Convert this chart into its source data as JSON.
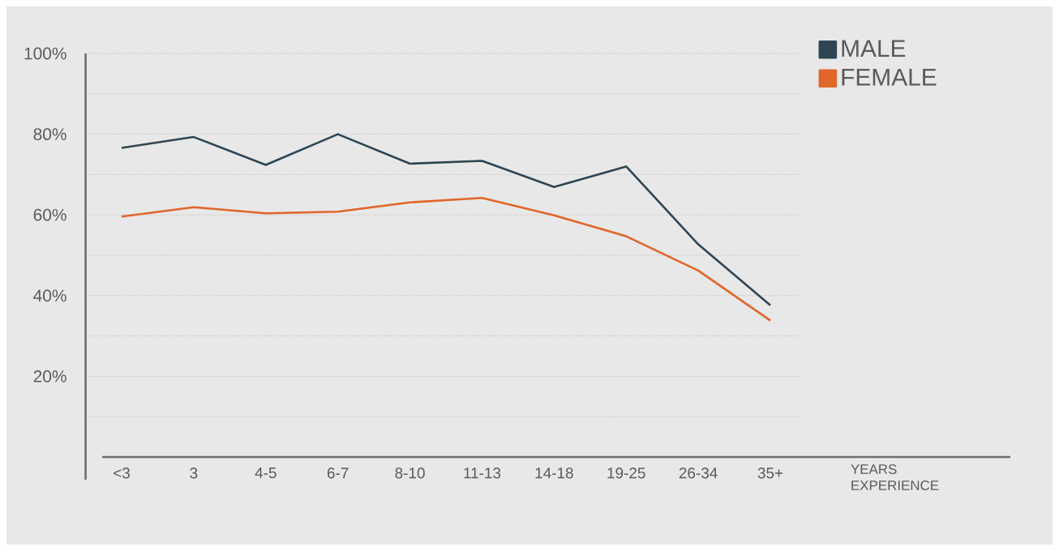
{
  "chart_data": {
    "type": "line",
    "categories": [
      "<3",
      "3",
      "4-5",
      "6-7",
      "8-10",
      "11-13",
      "14-18",
      "19-25",
      "26-34",
      "35+"
    ],
    "xlabel": "YEARS EXPERIENCE",
    "series": [
      {
        "name": "MALE",
        "color": "#2f4552",
        "values": [
          76.6,
          79.3,
          72.4,
          80,
          72.7,
          73.4,
          66.9,
          72,
          52.7,
          37.6
        ]
      },
      {
        "name": "FEMALE",
        "color": "#e0662a",
        "values": [
          59.6,
          61.9,
          60.4,
          60.8,
          63.1,
          64.2,
          59.9,
          54.7,
          46.2,
          33.8
        ]
      }
    ],
    "ylim": [
      0,
      100
    ],
    "yticks": [
      {
        "value": 10,
        "label": null
      },
      {
        "value": 20,
        "label": "20%"
      },
      {
        "value": 30,
        "label": null
      },
      {
        "value": 40,
        "label": "40%"
      },
      {
        "value": 50,
        "label": null
      },
      {
        "value": 60,
        "label": "60%"
      },
      {
        "value": 70,
        "label": null
      },
      {
        "value": 80,
        "label": "80%"
      },
      {
        "value": 90,
        "label": null
      },
      {
        "value": 100,
        "label": "100%"
      }
    ],
    "grid": "y",
    "legend": "top right",
    "marker": "none",
    "line_style": "solid"
  }
}
